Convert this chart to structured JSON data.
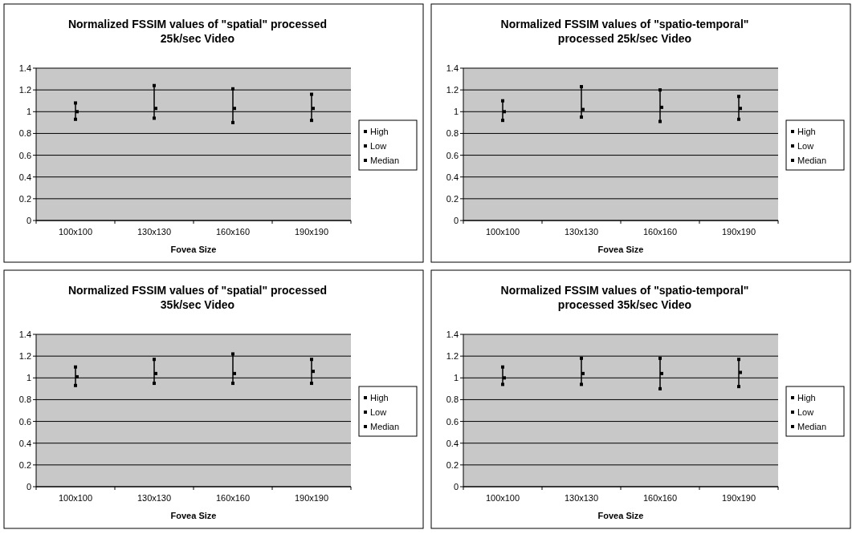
{
  "chart_data": [
    {
      "type": "scatter",
      "title": "Normalized FSSIM values of \"spatial\" processed 25k/sec Video",
      "xlabel": "Fovea Size",
      "categories": [
        "100x100",
        "130x130",
        "160x160",
        "190x190"
      ],
      "ylim": [
        0,
        1.4
      ],
      "yticks": [
        0,
        0.2,
        0.4,
        0.6,
        0.8,
        1,
        1.2,
        1.4
      ],
      "grid": "y",
      "legend": "right",
      "series": [
        {
          "name": "High",
          "color": "#000000",
          "marker": "square",
          "values": [
            1.08,
            1.24,
            1.21,
            1.16
          ]
        },
        {
          "name": "Low",
          "color": "#000000",
          "marker": "square",
          "values": [
            0.93,
            0.94,
            0.9,
            0.92
          ]
        },
        {
          "name": "Median",
          "color": "#000000",
          "marker": "square",
          "values": [
            1.0,
            1.03,
            1.03,
            1.03
          ]
        }
      ]
    },
    {
      "type": "scatter",
      "title": "Normalized FSSIM values of \"spatio-temporal\" processed 25k/sec Video",
      "xlabel": "Fovea Size",
      "categories": [
        "100x100",
        "130x130",
        "160x160",
        "190x190"
      ],
      "ylim": [
        0,
        1.4
      ],
      "yticks": [
        0,
        0.2,
        0.4,
        0.6,
        0.8,
        1,
        1.2,
        1.4
      ],
      "grid": "y",
      "legend": "right",
      "series": [
        {
          "name": "High",
          "color": "#000000",
          "marker": "square",
          "values": [
            1.1,
            1.23,
            1.2,
            1.14
          ]
        },
        {
          "name": "Low",
          "color": "#000000",
          "marker": "square",
          "values": [
            0.92,
            0.95,
            0.91,
            0.93
          ]
        },
        {
          "name": "Median",
          "color": "#000000",
          "marker": "square",
          "values": [
            1.0,
            1.02,
            1.04,
            1.03
          ]
        }
      ]
    },
    {
      "type": "scatter",
      "title": "Normalized FSSIM values of \"spatial\" processed 35k/sec Video",
      "xlabel": "Fovea Size",
      "categories": [
        "100x100",
        "130x130",
        "160x160",
        "190x190"
      ],
      "ylim": [
        0,
        1.4
      ],
      "yticks": [
        0,
        0.2,
        0.4,
        0.6,
        0.8,
        1,
        1.2,
        1.4
      ],
      "grid": "y",
      "legend": "right",
      "series": [
        {
          "name": "High",
          "color": "#000000",
          "marker": "square",
          "values": [
            1.1,
            1.17,
            1.22,
            1.17
          ]
        },
        {
          "name": "Low",
          "color": "#000000",
          "marker": "square",
          "values": [
            0.93,
            0.95,
            0.95,
            0.95
          ]
        },
        {
          "name": "Median",
          "color": "#000000",
          "marker": "square",
          "values": [
            1.01,
            1.04,
            1.04,
            1.06
          ]
        }
      ]
    },
    {
      "type": "scatter",
      "title": "Normalized FSSIM values of \"spatio-temporal\" processed 35k/sec Video",
      "xlabel": "Fovea Size",
      "categories": [
        "100x100",
        "130x130",
        "160x160",
        "190x190"
      ],
      "ylim": [
        0,
        1.4
      ],
      "yticks": [
        0,
        0.2,
        0.4,
        0.6,
        0.8,
        1,
        1.2,
        1.4
      ],
      "grid": "y",
      "legend": "right",
      "series": [
        {
          "name": "High",
          "color": "#000000",
          "marker": "square",
          "values": [
            1.1,
            1.18,
            1.18,
            1.17
          ]
        },
        {
          "name": "Low",
          "color": "#000000",
          "marker": "square",
          "values": [
            0.94,
            0.94,
            0.9,
            0.92
          ]
        },
        {
          "name": "Median",
          "color": "#000000",
          "marker": "square",
          "values": [
            1.0,
            1.04,
            1.04,
            1.05
          ]
        }
      ]
    }
  ]
}
